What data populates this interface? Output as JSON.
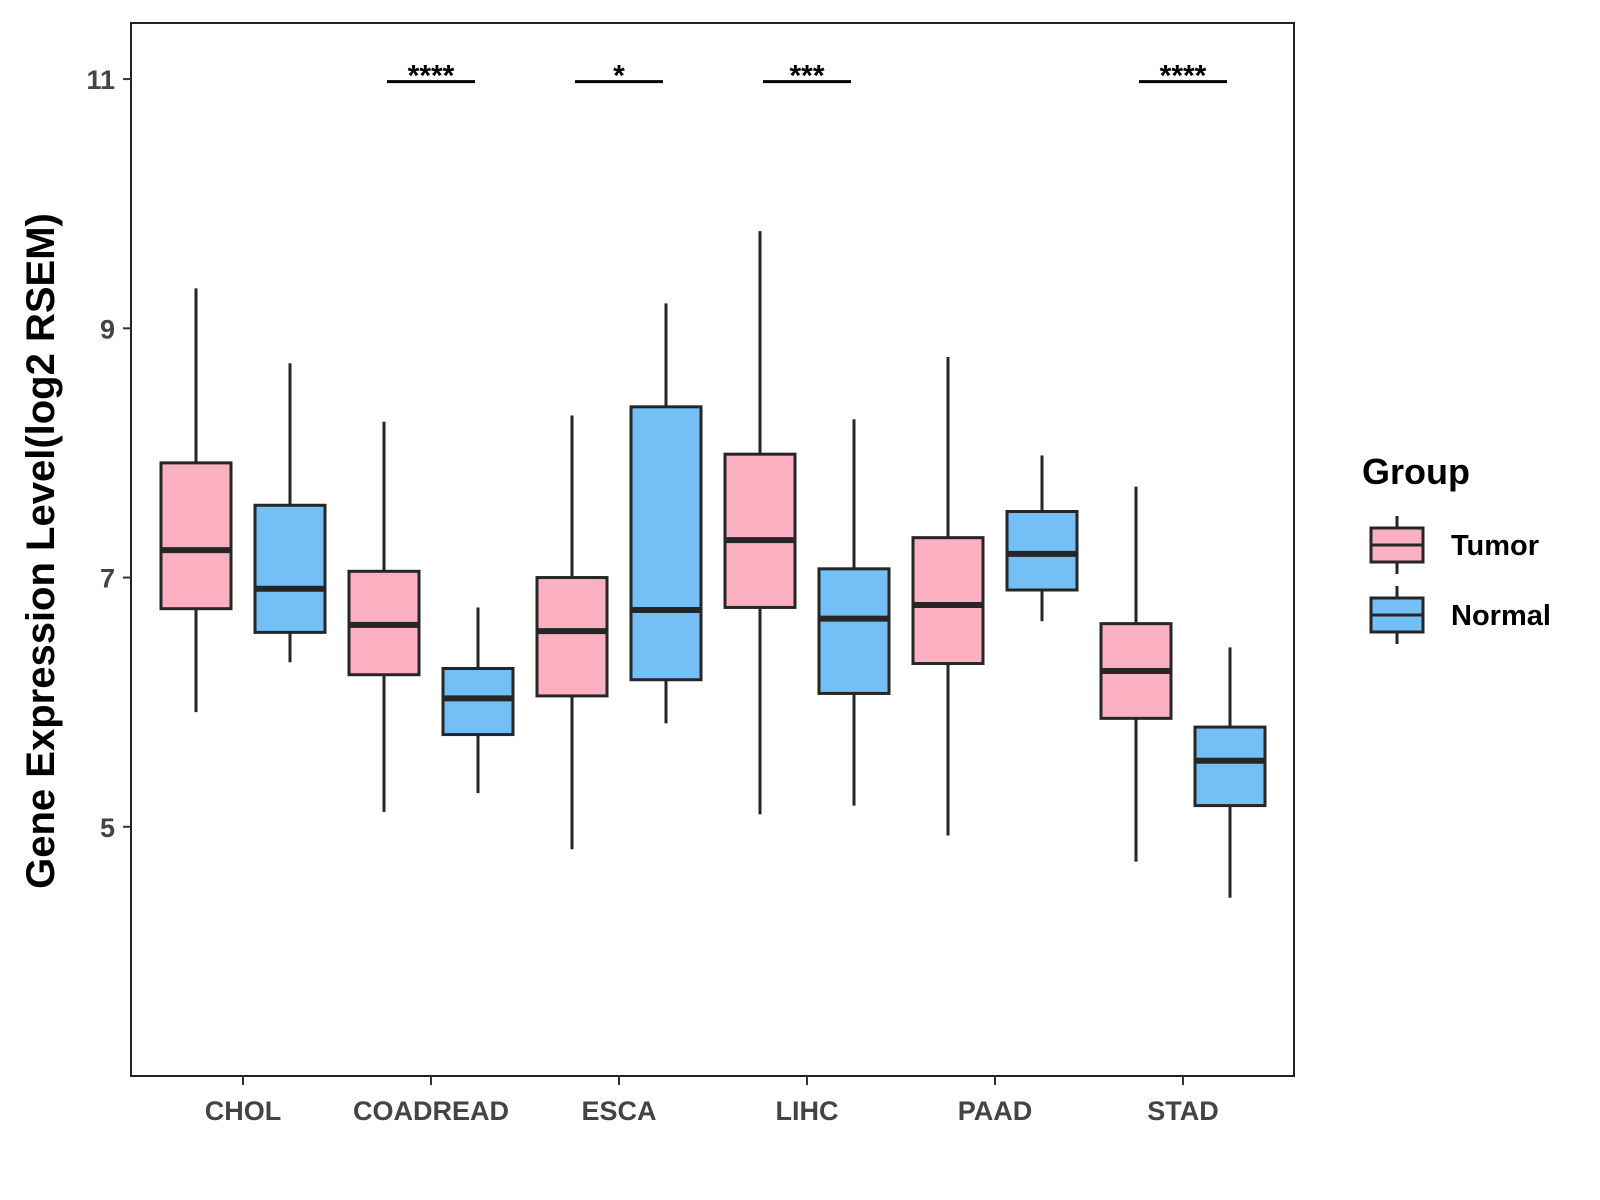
{
  "chart_data": {
    "type": "boxplot",
    "title": "",
    "xlabel": "",
    "ylabel": "Gene Expression Level(log2 RSEM)",
    "ylim": [
      3.0,
      11.45
    ],
    "y_ticks": [
      5,
      7,
      9,
      11
    ],
    "y_tick_labels": [
      "5",
      "7",
      "9",
      "11"
    ],
    "grid": false,
    "legend": {
      "title": "Group",
      "position": "right"
    },
    "categories": [
      "CHOL",
      "COADREAD",
      "ESCA",
      "LIHC",
      "PAAD",
      "STAD"
    ],
    "series": [
      {
        "name": "Tumor",
        "color": "#FBB0C2",
        "boxes": [
          {
            "min": 5.92,
            "q1": 6.75,
            "median": 7.22,
            "q3": 7.92,
            "max": 9.32
          },
          {
            "min": 5.12,
            "q1": 6.22,
            "median": 6.62,
            "q3": 7.05,
            "max": 8.25
          },
          {
            "min": 4.82,
            "q1": 6.05,
            "median": 6.57,
            "q3": 7.0,
            "max": 8.3
          },
          {
            "min": 5.1,
            "q1": 6.76,
            "median": 7.3,
            "q3": 7.99,
            "max": 9.78
          },
          {
            "min": 4.93,
            "q1": 6.31,
            "median": 6.78,
            "q3": 7.32,
            "max": 8.77
          },
          {
            "min": 4.72,
            "q1": 5.87,
            "median": 6.25,
            "q3": 6.63,
            "max": 7.73
          }
        ]
      },
      {
        "name": "Normal",
        "color": "#75BFF7",
        "boxes": [
          {
            "min": 6.32,
            "q1": 6.56,
            "median": 6.91,
            "q3": 7.58,
            "max": 8.72
          },
          {
            "min": 5.27,
            "q1": 5.74,
            "median": 6.03,
            "q3": 6.27,
            "max": 6.76
          },
          {
            "min": 5.83,
            "q1": 6.18,
            "median": 6.74,
            "q3": 8.37,
            "max": 9.2
          },
          {
            "min": 5.17,
            "q1": 6.07,
            "median": 6.67,
            "q3": 7.07,
            "max": 8.27
          },
          {
            "min": 6.65,
            "q1": 6.9,
            "median": 7.19,
            "q3": 7.53,
            "max": 7.98
          },
          {
            "min": 4.43,
            "q1": 5.17,
            "median": 5.53,
            "q3": 5.8,
            "max": 6.44
          }
        ]
      }
    ],
    "significance": [
      {
        "category": "COADREAD",
        "label": "****"
      },
      {
        "category": "ESCA",
        "label": "*"
      },
      {
        "category": "LIHC",
        "label": "***"
      },
      {
        "category": "STAD",
        "label": "****"
      }
    ]
  }
}
